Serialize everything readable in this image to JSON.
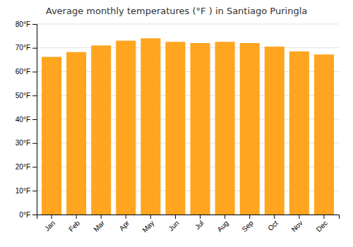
{
  "chart_data": {
    "type": "bar",
    "title": "Average monthly temperatures (°F ) in Santiago Puringla",
    "categories": [
      "Jan",
      "Feb",
      "Mar",
      "Apr",
      "May",
      "Jun",
      "Jul",
      "Aug",
      "Sep",
      "Oct",
      "Nov",
      "Dec"
    ],
    "values": [
      66.2,
      68.2,
      71.0,
      73.0,
      74.0,
      72.5,
      72.0,
      72.5,
      72.0,
      70.5,
      68.5,
      67.2
    ],
    "color": "#FFA520",
    "ylim": [
      0,
      80
    ],
    "yticks": [
      {
        "value": 0,
        "label": "0°F"
      },
      {
        "value": 10,
        "label": "10°F"
      },
      {
        "value": 20,
        "label": "20°F"
      },
      {
        "value": 30,
        "label": "30°F"
      },
      {
        "value": 40,
        "label": "40°F"
      },
      {
        "value": 50,
        "label": "50°F"
      },
      {
        "value": 60,
        "label": "60°F"
      },
      {
        "value": 70,
        "label": "70°F"
      },
      {
        "value": 80,
        "label": "80°F"
      }
    ],
    "grid": true
  }
}
